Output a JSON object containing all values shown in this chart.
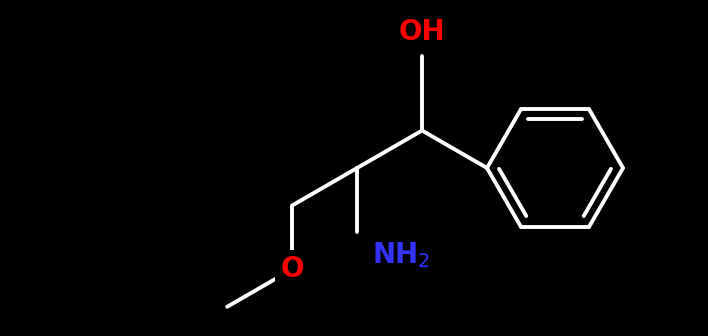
{
  "background": "#000000",
  "bond_color": "white",
  "bond_lw": 2.8,
  "figsize": [
    7.08,
    3.36
  ],
  "dpi": 100,
  "OH_color": "#ff0000",
  "O_color": "#ff0000",
  "NH2_color": "#3333ff",
  "font_size": 20
}
